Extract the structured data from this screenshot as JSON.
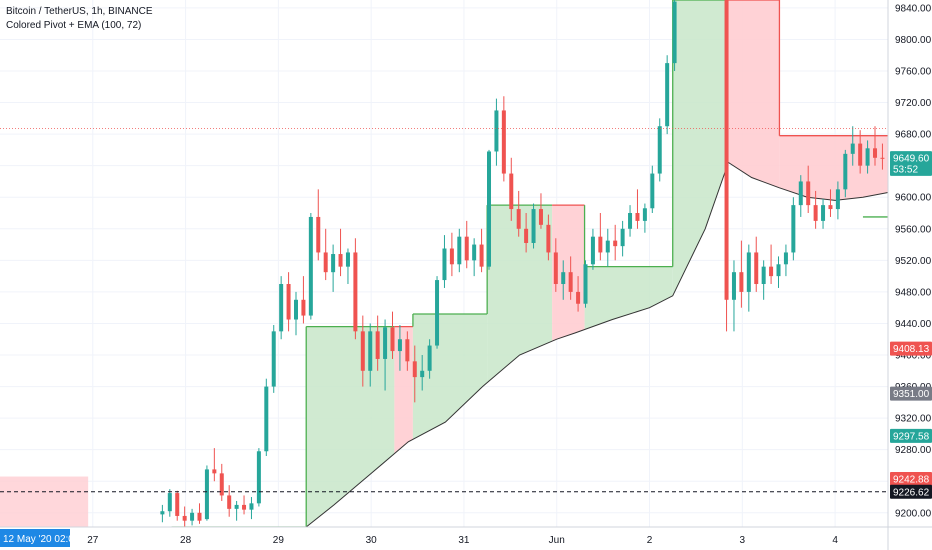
{
  "header": {
    "symbol_line": "Bitcoin / TetherUS, 1h, BINANCE",
    "indicator_line": "Colored Pivot + EMA (100, 72)"
  },
  "colors": {
    "up": "#26a69a",
    "down": "#ef5350",
    "green_fill": "#c8e6c9",
    "green_line": "#4caf50",
    "red_fill": "#ffcdd2",
    "red_line": "#ef5350",
    "ema_line": "#333333",
    "grid": "#f0f3fa",
    "axis_text": "#131722"
  },
  "chart_data": {
    "type": "candlestick",
    "title": "Bitcoin / TetherUS, 1h, BINANCE",
    "ylim": [
      9182,
      9850
    ],
    "y_ticks": [
      9200,
      9240,
      9280,
      9320,
      9360,
      9400,
      9440,
      9480,
      9520,
      9560,
      9600,
      9640,
      9680,
      9720,
      9760,
      9800,
      9840
    ],
    "x_ticks": [
      {
        "label": "27",
        "t": 27
      },
      {
        "label": "28",
        "t": 28
      },
      {
        "label": "29",
        "t": 29
      },
      {
        "label": "30",
        "t": 30
      },
      {
        "label": "31",
        "t": 31
      },
      {
        "label": "Jun",
        "t": 32
      },
      {
        "label": "2",
        "t": 33
      },
      {
        "label": "3",
        "t": 34
      },
      {
        "label": "4",
        "t": 35
      }
    ],
    "x_range": [
      26.0,
      35.57
    ],
    "crosshair": {
      "date_label": "12 May '20  02:00",
      "price": 9226.62,
      "price_label": "9226.62"
    },
    "price_tags": [
      {
        "value": 9649.6,
        "label": "9649.60",
        "color": "#26a69a"
      },
      {
        "value": 9636.0,
        "label": "53:52",
        "color": "#26a69a"
      },
      {
        "value": 9408.13,
        "label": "9408.13",
        "color": "#ef5350"
      },
      {
        "value": 9351.0,
        "label": "9351.00",
        "color": "#787b86"
      },
      {
        "value": 9297.58,
        "label": "9297.58",
        "color": "#26a69a"
      },
      {
        "value": 9242.88,
        "label": "9242.88",
        "color": "#ef5350"
      },
      {
        "value": 9226.62,
        "label": "9226.62",
        "color": "#131722"
      }
    ],
    "last_price_line": 9687,
    "pivot_segments": [
      {
        "t0": 27.85,
        "t1": 29.3,
        "level": 9182,
        "side": "up"
      },
      {
        "t0": 29.3,
        "t1": 30.25,
        "level": 9436,
        "side": "up"
      },
      {
        "t0": 30.25,
        "t1": 30.45,
        "level": 9436,
        "side": "down"
      },
      {
        "t0": 30.45,
        "t1": 31.25,
        "level": 9452,
        "side": "up"
      },
      {
        "t0": 31.25,
        "t1": 31.95,
        "level": 9590,
        "side": "up"
      },
      {
        "t0": 31.95,
        "t1": 32.3,
        "level": 9590,
        "side": "down"
      },
      {
        "t0": 32.3,
        "t1": 33.25,
        "level": 9512,
        "side": "up"
      },
      {
        "t0": 33.25,
        "t1": 33.85,
        "level": 9850,
        "side": "up"
      },
      {
        "t0": 33.85,
        "t1": 34.4,
        "level": 9850,
        "side": "down"
      },
      {
        "t0": 34.4,
        "t1": 35.57,
        "level": 9678,
        "side": "down"
      }
    ],
    "ema": [
      [
        29.3,
        9182
      ],
      [
        29.6,
        9210
      ],
      [
        30.0,
        9250
      ],
      [
        30.4,
        9290
      ],
      [
        30.8,
        9315
      ],
      [
        31.2,
        9360
      ],
      [
        31.6,
        9400
      ],
      [
        32.0,
        9420
      ],
      [
        32.2,
        9428
      ],
      [
        32.6,
        9445
      ],
      [
        33.0,
        9460
      ],
      [
        33.25,
        9475
      ],
      [
        33.6,
        9560
      ],
      [
        33.85,
        9644
      ],
      [
        34.1,
        9625
      ],
      [
        34.4,
        9612
      ],
      [
        34.7,
        9600
      ],
      [
        35.0,
        9596
      ],
      [
        35.3,
        9600
      ],
      [
        35.57,
        9606
      ]
    ],
    "ema_end_area": {
      "t0": 35.3,
      "t1": 35.57,
      "level": 9575
    },
    "left_band": {
      "t0": 26.0,
      "t1": 26.95,
      "top": 9246,
      "bottom": 9182
    },
    "candles": [
      [
        27.75,
        9198,
        9210,
        9188,
        9202
      ],
      [
        27.83,
        9202,
        9230,
        9195,
        9225
      ],
      [
        27.91,
        9225,
        9228,
        9190,
        9196
      ],
      [
        27.99,
        9196,
        9208,
        9182,
        9190
      ],
      [
        28.07,
        9190,
        9205,
        9184,
        9200
      ],
      [
        28.15,
        9200,
        9212,
        9186,
        9190
      ],
      [
        28.23,
        9192,
        9260,
        9190,
        9255
      ],
      [
        28.31,
        9255,
        9282,
        9240,
        9250
      ],
      [
        28.39,
        9250,
        9262,
        9215,
        9222
      ],
      [
        28.47,
        9222,
        9235,
        9195,
        9205
      ],
      [
        28.55,
        9205,
        9215,
        9190,
        9210
      ],
      [
        28.63,
        9210,
        9222,
        9198,
        9204
      ],
      [
        28.71,
        9204,
        9220,
        9192,
        9212
      ],
      [
        28.79,
        9212,
        9282,
        9208,
        9278
      ],
      [
        28.87,
        9278,
        9370,
        9272,
        9360
      ],
      [
        28.95,
        9360,
        9438,
        9352,
        9430
      ],
      [
        29.03,
        9430,
        9500,
        9420,
        9490
      ],
      [
        29.11,
        9490,
        9505,
        9430,
        9445
      ],
      [
        29.19,
        9445,
        9480,
        9425,
        9470
      ],
      [
        29.27,
        9470,
        9500,
        9440,
        9450
      ],
      [
        29.35,
        9450,
        9580,
        9445,
        9575
      ],
      [
        29.43,
        9575,
        9610,
        9520,
        9530
      ],
      [
        29.51,
        9530,
        9560,
        9495,
        9505
      ],
      [
        29.59,
        9505,
        9540,
        9480,
        9528
      ],
      [
        29.67,
        9528,
        9560,
        9500,
        9512
      ],
      [
        29.75,
        9512,
        9535,
        9490,
        9530
      ],
      [
        29.83,
        9530,
        9548,
        9420,
        9430
      ],
      [
        29.91,
        9430,
        9450,
        9360,
        9380
      ],
      [
        29.99,
        9380,
        9440,
        9360,
        9430
      ],
      [
        30.07,
        9430,
        9450,
        9380,
        9395
      ],
      [
        30.15,
        9395,
        9445,
        9355,
        9435
      ],
      [
        30.23,
        9435,
        9455,
        9395,
        9405
      ],
      [
        30.31,
        9405,
        9438,
        9380,
        9420
      ],
      [
        30.39,
        9420,
        9430,
        9380,
        9392
      ],
      [
        30.47,
        9392,
        9412,
        9340,
        9372
      ],
      [
        30.55,
        9372,
        9400,
        9355,
        9380
      ],
      [
        30.63,
        9380,
        9420,
        9370,
        9412
      ],
      [
        30.71,
        9412,
        9500,
        9408,
        9495
      ],
      [
        30.79,
        9495,
        9552,
        9485,
        9535
      ],
      [
        30.87,
        9535,
        9555,
        9500,
        9515
      ],
      [
        30.95,
        9515,
        9560,
        9505,
        9550
      ],
      [
        31.03,
        9550,
        9570,
        9510,
        9520
      ],
      [
        31.11,
        9520,
        9548,
        9500,
        9540
      ],
      [
        31.19,
        9540,
        9560,
        9505,
        9512
      ],
      [
        31.27,
        9512,
        9660,
        9508,
        9658
      ],
      [
        31.35,
        9658,
        9725,
        9640,
        9710
      ],
      [
        31.43,
        9710,
        9728,
        9620,
        9630
      ],
      [
        31.51,
        9630,
        9650,
        9570,
        9585
      ],
      [
        31.59,
        9585,
        9608,
        9550,
        9560
      ],
      [
        31.67,
        9560,
        9580,
        9530,
        9542
      ],
      [
        31.75,
        9542,
        9592,
        9535,
        9585
      ],
      [
        31.83,
        9585,
        9605,
        9560,
        9565
      ],
      [
        31.91,
        9565,
        9578,
        9520,
        9530
      ],
      [
        31.99,
        9530,
        9548,
        9480,
        9490
      ],
      [
        32.07,
        9490,
        9520,
        9470,
        9505
      ],
      [
        32.15,
        9505,
        9525,
        9470,
        9480
      ],
      [
        32.23,
        9480,
        9500,
        9455,
        9465
      ],
      [
        32.31,
        9465,
        9520,
        9460,
        9515
      ],
      [
        32.39,
        9515,
        9560,
        9508,
        9550
      ],
      [
        32.47,
        9550,
        9580,
        9520,
        9530
      ],
      [
        32.55,
        9530,
        9560,
        9512,
        9545
      ],
      [
        32.63,
        9545,
        9565,
        9520,
        9538
      ],
      [
        32.71,
        9538,
        9570,
        9525,
        9560
      ],
      [
        32.79,
        9560,
        9590,
        9550,
        9580
      ],
      [
        32.87,
        9580,
        9610,
        9560,
        9570
      ],
      [
        32.95,
        9570,
        9592,
        9555,
        9586
      ],
      [
        33.03,
        9586,
        9640,
        9580,
        9630
      ],
      [
        33.11,
        9630,
        9700,
        9620,
        9690
      ],
      [
        33.19,
        9690,
        9780,
        9680,
        9770
      ],
      [
        33.27,
        9770,
        9850,
        9760,
        9848
      ],
      [
        33.83,
        9850,
        9850,
        9430,
        9470
      ],
      [
        33.91,
        9470,
        9520,
        9430,
        9505
      ],
      [
        33.99,
        9505,
        9545,
        9460,
        9480
      ],
      [
        34.07,
        9480,
        9540,
        9455,
        9530
      ],
      [
        34.15,
        9530,
        9550,
        9480,
        9490
      ],
      [
        34.23,
        9490,
        9520,
        9470,
        9512
      ],
      [
        34.31,
        9512,
        9540,
        9490,
        9500
      ],
      [
        34.39,
        9500,
        9525,
        9485,
        9515
      ],
      [
        34.47,
        9515,
        9540,
        9500,
        9530
      ],
      [
        34.55,
        9530,
        9600,
        9520,
        9590
      ],
      [
        34.63,
        9590,
        9628,
        9575,
        9620
      ],
      [
        34.71,
        9620,
        9640,
        9580,
        9590
      ],
      [
        34.79,
        9590,
        9608,
        9560,
        9570
      ],
      [
        34.87,
        9570,
        9598,
        9560,
        9590
      ],
      [
        34.95,
        9590,
        9610,
        9575,
        9585
      ],
      [
        35.03,
        9585,
        9620,
        9572,
        9610
      ],
      [
        35.11,
        9610,
        9660,
        9600,
        9655
      ],
      [
        35.19,
        9655,
        9690,
        9640,
        9668
      ],
      [
        35.27,
        9668,
        9685,
        9630,
        9640
      ],
      [
        35.35,
        9640,
        9672,
        9630,
        9662
      ],
      [
        35.43,
        9662,
        9690,
        9640,
        9650
      ],
      [
        35.51,
        9650,
        9668,
        9635,
        9649.6
      ]
    ]
  }
}
